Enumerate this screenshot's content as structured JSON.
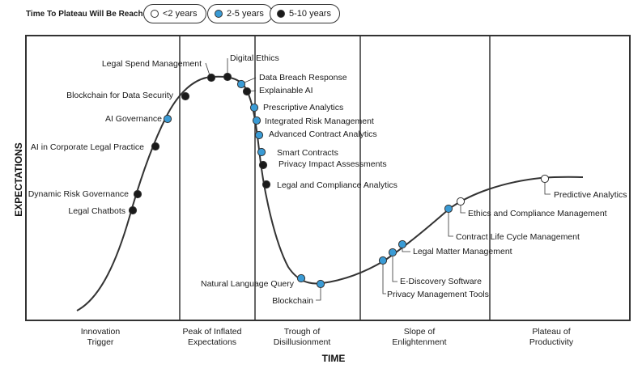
{
  "legend": {
    "title": "Time To Plateau Will Be Reached:",
    "items": [
      {
        "label": "<2 years",
        "color": "#ffffff"
      },
      {
        "label": "2-5 years",
        "color": "#3a9bd5"
      },
      {
        "label": "5-10 years",
        "color": "#1a1a1a"
      }
    ]
  },
  "axes": {
    "y_label": "EXPECTATIONS",
    "x_label": "TIME"
  },
  "phases": [
    {
      "line1": "Innovation",
      "line2": "Trigger"
    },
    {
      "line1": "Peak of Inflated",
      "line2": "Expectations"
    },
    {
      "line1": "Trough of",
      "line2": "Disillusionment"
    },
    {
      "line1": "Slope of",
      "line2": "Enlightenment"
    },
    {
      "line1": "Plateau of",
      "line2": "Productivity"
    }
  ],
  "technologies": [
    {
      "label": "Legal Chatbots",
      "category": "5-10 years"
    },
    {
      "label": "Dynamic Risk Governance",
      "category": "5-10 years"
    },
    {
      "label": "AI in Corporate Legal Practice",
      "category": "5-10 years"
    },
    {
      "label": "AI Governance",
      "category": "2-5 years"
    },
    {
      "label": "Blockchain for Data Security",
      "category": "5-10 years"
    },
    {
      "label": "Legal Spend Management",
      "category": "5-10 years"
    },
    {
      "label": "Digital Ethics",
      "category": "5-10 years"
    },
    {
      "label": "Data Breach Response",
      "category": "2-5 years"
    },
    {
      "label": "Explainable AI",
      "category": "5-10 years"
    },
    {
      "label": "Prescriptive Analytics",
      "category": "2-5 years"
    },
    {
      "label": "Integrated Risk Management",
      "category": "2-5 years"
    },
    {
      "label": "Advanced Contract Analytics",
      "category": "2-5 years"
    },
    {
      "label": "Smart Contracts",
      "category": "2-5 years"
    },
    {
      "label": "Privacy Impact Assessments",
      "category": "5-10 years"
    },
    {
      "label": "Legal and Compliance Analytics",
      "category": "5-10 years"
    },
    {
      "label": "Natural Language Query",
      "category": "2-5 years"
    },
    {
      "label": "Blockchain",
      "category": "2-5 years"
    },
    {
      "label": "Privacy Management Tools",
      "category": "2-5 years"
    },
    {
      "label": "E-Discovery Software",
      "category": "2-5 years"
    },
    {
      "label": "Legal Matter Management",
      "category": "2-5 years"
    },
    {
      "label": "Contract Life Cycle Management",
      "category": "2-5 years"
    },
    {
      "label": "Ethics and Compliance Management",
      "category": "<2 years"
    },
    {
      "label": "Predictive Analytics",
      "category": "<2 years"
    }
  ]
}
